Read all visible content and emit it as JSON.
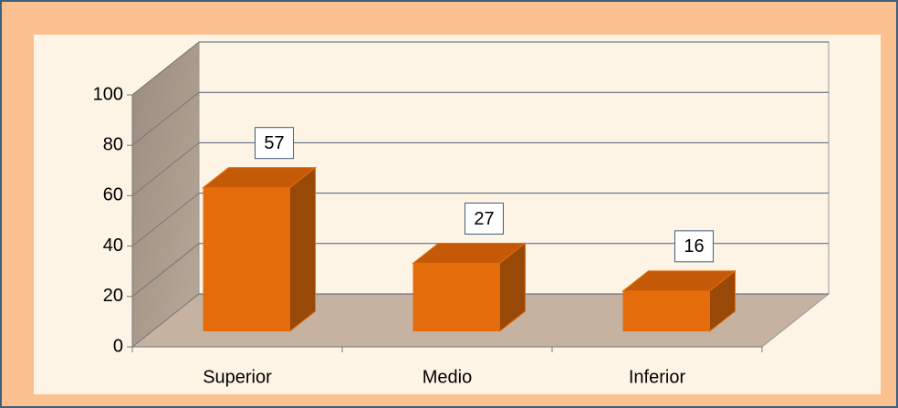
{
  "chart_data": {
    "type": "bar",
    "categories": [
      "Superior",
      "Medio",
      "Inferior"
    ],
    "values": [
      57,
      27,
      16
    ],
    "color": "#e46c0a",
    "ylim": [
      0,
      100
    ],
    "yticks": [
      0,
      20,
      40,
      60,
      80,
      100
    ],
    "grid": true
  }
}
